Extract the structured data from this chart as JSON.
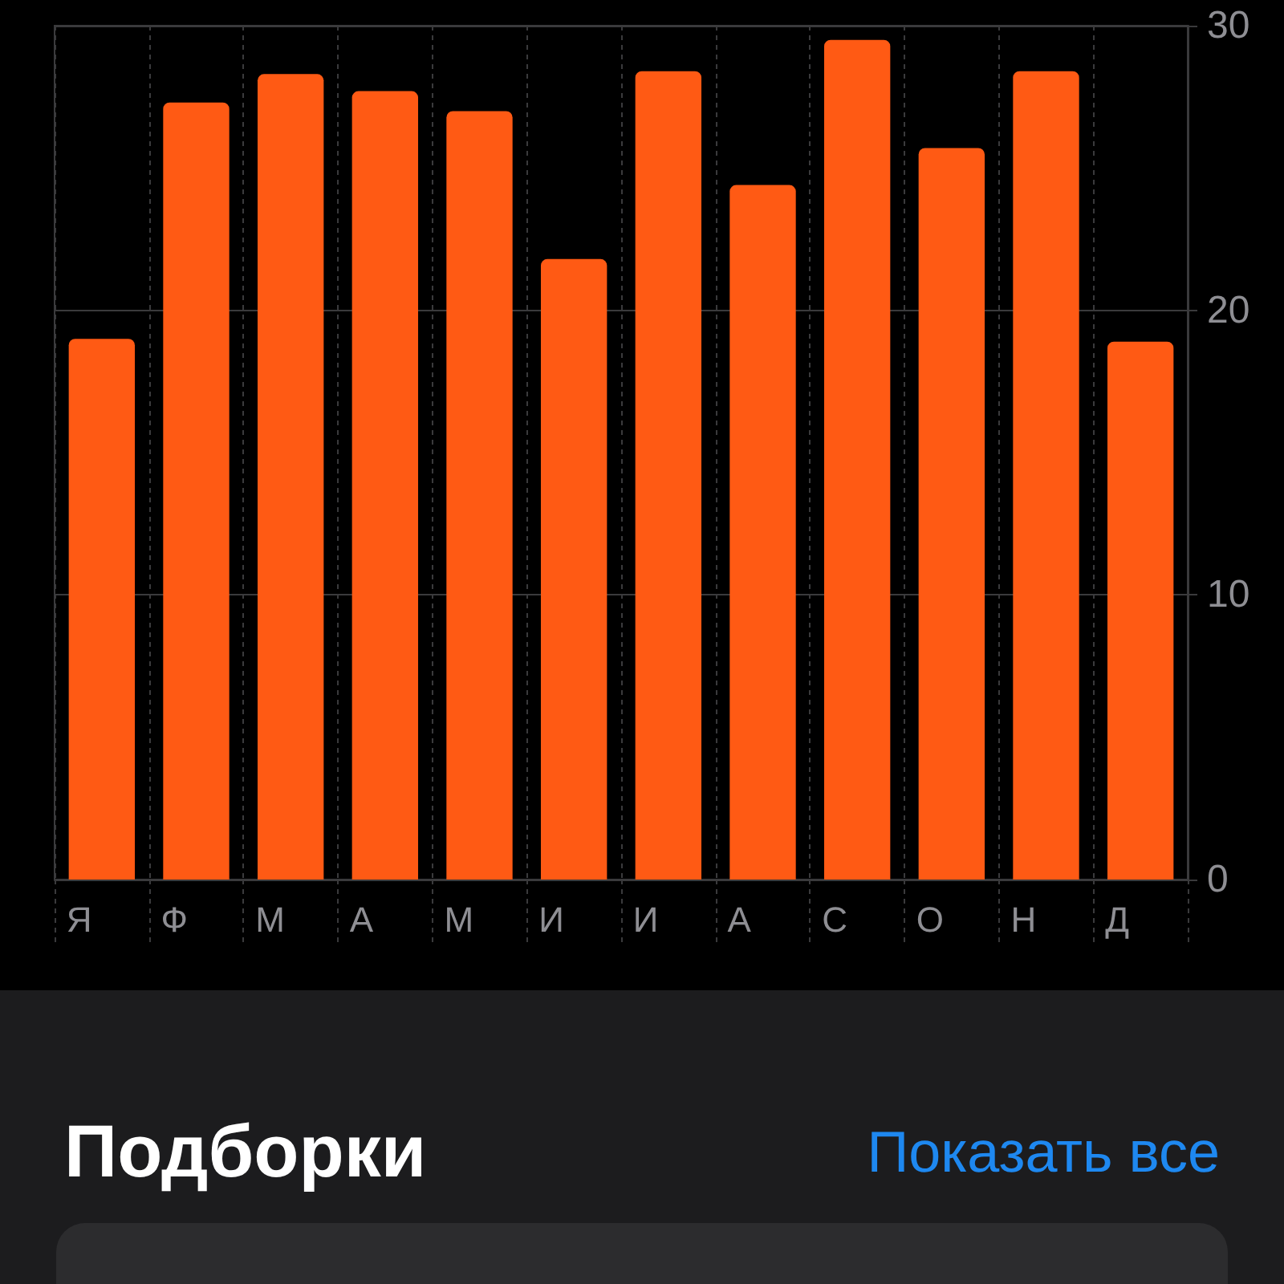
{
  "chart_data": {
    "type": "bar",
    "categories": [
      "Я",
      "Ф",
      "М",
      "А",
      "М",
      "И",
      "И",
      "А",
      "С",
      "О",
      "Н",
      "Д"
    ],
    "values": [
      19.0,
      27.3,
      28.3,
      27.7,
      27.0,
      21.8,
      28.4,
      24.4,
      29.5,
      25.7,
      28.4,
      18.9
    ],
    "color": "#ff5a14",
    "ylim": [
      0,
      30
    ],
    "yticks": [
      0,
      10,
      20,
      30
    ],
    "grid": true,
    "annotations": [
      "Подборки",
      "Показать все"
    ]
  }
}
